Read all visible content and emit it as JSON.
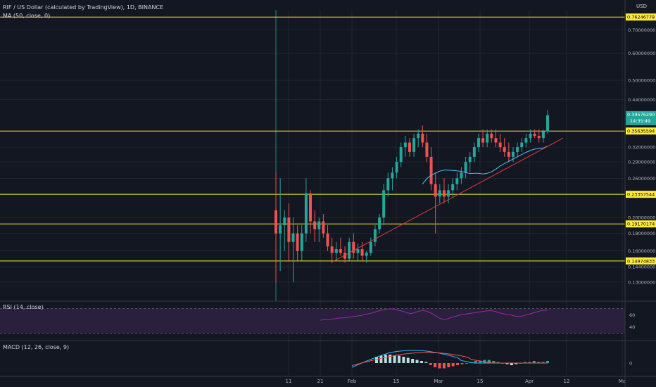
{
  "header": {
    "symbol_line": "RIF / US Dollar (calculated by TradingView), 1D, BINANCE",
    "ma_label": "MA (50, close, 0)",
    "currency": "USD"
  },
  "price_axis": {
    "ticks": [
      "0.70000000",
      "0.60000000",
      "0.50000000",
      "0.44000000",
      "0.32000000",
      "0.29000000",
      "0.26000000",
      "0.20000000",
      "0.18000000",
      "0.16000000",
      "0.14400000",
      "0.13000000"
    ],
    "last_price": "0.39576290",
    "countdown": "14:35:49"
  },
  "horizontal_levels": [
    {
      "price": 0.76246778,
      "label": "0.76246778"
    },
    {
      "price": 0.35635594,
      "label": "0.35635594"
    },
    {
      "price": 0.23357544,
      "label": "0.23357544"
    },
    {
      "price": 0.19170174,
      "label": "0.19170174"
    },
    {
      "price": 0.14974833,
      "label": "0.14974833"
    }
  ],
  "time_axis": {
    "labels": [
      "11",
      "21",
      "Feb",
      "15",
      "Mar",
      "15",
      "Apr",
      "12",
      "Ma"
    ]
  },
  "rsi": {
    "label": "RSI (14, close)",
    "ticks": [
      "60",
      "40"
    ],
    "upper": 70,
    "lower": 30
  },
  "macd": {
    "label": "MACD (12, 26, close, 9)",
    "ticks": [
      "0"
    ]
  },
  "colors": {
    "background": "#131722",
    "up": "#26a69a",
    "down": "#ef5350",
    "level": "#ffeb3b",
    "ma": "#4fc3f7",
    "trendline": "#e53935",
    "rsi": "#9c27b0",
    "rsi_band": "#2a1f3d",
    "macd": "#29b6f6",
    "signal": "#ff5252",
    "grid": "#2a2e39",
    "text": "#b2b5be"
  },
  "chart_data": {
    "type": "candlestick",
    "title": "RIF / US Dollar (calculated by TradingView), 1D, BINANCE",
    "y_scale": "log",
    "ylim": [
      0.12,
      0.8
    ],
    "candles": [
      [
        0.21,
        0.27,
        0.13,
        0.18
      ],
      [
        0.18,
        0.26,
        0.14,
        0.19
      ],
      [
        0.19,
        0.21,
        0.16,
        0.2
      ],
      [
        0.2,
        0.22,
        0.15,
        0.17
      ],
      [
        0.17,
        0.2,
        0.13,
        0.18
      ],
      [
        0.18,
        0.19,
        0.15,
        0.16
      ],
      [
        0.16,
        0.19,
        0.15,
        0.18
      ],
      [
        0.18,
        0.26,
        0.17,
        0.235
      ],
      [
        0.235,
        0.24,
        0.18,
        0.195
      ],
      [
        0.195,
        0.21,
        0.17,
        0.185
      ],
      [
        0.185,
        0.2,
        0.17,
        0.195
      ],
      [
        0.195,
        0.205,
        0.175,
        0.18
      ],
      [
        0.18,
        0.19,
        0.16,
        0.165
      ],
      [
        0.165,
        0.175,
        0.15,
        0.158
      ],
      [
        0.158,
        0.17,
        0.15,
        0.162
      ],
      [
        0.162,
        0.175,
        0.155,
        0.158
      ],
      [
        0.158,
        0.165,
        0.148,
        0.152
      ],
      [
        0.152,
        0.175,
        0.15,
        0.17
      ],
      [
        0.17,
        0.18,
        0.152,
        0.158
      ],
      [
        0.158,
        0.168,
        0.15,
        0.162
      ],
      [
        0.162,
        0.17,
        0.15,
        0.155
      ],
      [
        0.155,
        0.16,
        0.148,
        0.158
      ],
      [
        0.158,
        0.175,
        0.155,
        0.17
      ],
      [
        0.17,
        0.19,
        0.165,
        0.185
      ],
      [
        0.185,
        0.205,
        0.18,
        0.2
      ],
      [
        0.2,
        0.25,
        0.19,
        0.24
      ],
      [
        0.24,
        0.27,
        0.23,
        0.26
      ],
      [
        0.26,
        0.28,
        0.24,
        0.27
      ],
      [
        0.27,
        0.3,
        0.26,
        0.29
      ],
      [
        0.29,
        0.33,
        0.28,
        0.32
      ],
      [
        0.32,
        0.345,
        0.3,
        0.33
      ],
      [
        0.33,
        0.34,
        0.3,
        0.31
      ],
      [
        0.31,
        0.35,
        0.3,
        0.34
      ],
      [
        0.34,
        0.36,
        0.32,
        0.35
      ],
      [
        0.35,
        0.37,
        0.32,
        0.33
      ],
      [
        0.33,
        0.35,
        0.29,
        0.3
      ],
      [
        0.3,
        0.32,
        0.24,
        0.25
      ],
      [
        0.25,
        0.27,
        0.18,
        0.23
      ],
      [
        0.23,
        0.25,
        0.22,
        0.24
      ],
      [
        0.24,
        0.26,
        0.22,
        0.23
      ],
      [
        0.23,
        0.25,
        0.22,
        0.24
      ],
      [
        0.24,
        0.26,
        0.23,
        0.25
      ],
      [
        0.25,
        0.27,
        0.24,
        0.26
      ],
      [
        0.26,
        0.28,
        0.25,
        0.27
      ],
      [
        0.27,
        0.3,
        0.26,
        0.29
      ],
      [
        0.29,
        0.31,
        0.27,
        0.3
      ],
      [
        0.3,
        0.33,
        0.29,
        0.32
      ],
      [
        0.32,
        0.35,
        0.31,
        0.34
      ],
      [
        0.34,
        0.36,
        0.32,
        0.33
      ],
      [
        0.33,
        0.36,
        0.32,
        0.35
      ],
      [
        0.35,
        0.36,
        0.33,
        0.34
      ],
      [
        0.34,
        0.36,
        0.32,
        0.33
      ],
      [
        0.33,
        0.35,
        0.31,
        0.32
      ],
      [
        0.32,
        0.34,
        0.3,
        0.31
      ],
      [
        0.31,
        0.33,
        0.29,
        0.3
      ],
      [
        0.3,
        0.32,
        0.29,
        0.31
      ],
      [
        0.31,
        0.33,
        0.3,
        0.32
      ],
      [
        0.32,
        0.34,
        0.31,
        0.33
      ],
      [
        0.33,
        0.35,
        0.32,
        0.34
      ],
      [
        0.34,
        0.36,
        0.33,
        0.35
      ],
      [
        0.35,
        0.36,
        0.34,
        0.345
      ],
      [
        0.345,
        0.36,
        0.33,
        0.34
      ],
      [
        0.34,
        0.36,
        0.33,
        0.355
      ],
      [
        0.355,
        0.41,
        0.35,
        0.3958
      ]
    ],
    "trendline": {
      "points": [
        [
          0.148,
          0
        ],
        [
          0.34,
          1
        ]
      ]
    },
    "rsi_values": [
      51,
      52,
      52,
      53,
      54,
      55,
      55,
      56,
      57,
      58,
      59,
      61,
      62,
      64,
      66,
      68,
      69,
      70,
      69,
      67,
      66,
      63,
      62,
      64,
      66,
      67,
      65,
      62,
      58,
      54,
      52,
      54,
      56,
      58,
      60,
      61,
      62,
      63,
      64,
      65,
      66,
      67,
      66,
      64,
      62,
      61,
      60,
      58,
      57,
      58,
      60,
      62,
      64,
      66,
      67,
      68
    ],
    "macd_hist": [
      0.006,
      0.007,
      0.008,
      0.008,
      0.007,
      0.007,
      0.006,
      0.005,
      0.004,
      0.003,
      0.002,
      0.001,
      -0.002,
      -0.004,
      -0.005,
      -0.005,
      -0.004,
      -0.003,
      -0.002,
      -0.001,
      0.0,
      0.001,
      0.002,
      0.002,
      0.003,
      0.003,
      0.002,
      0.001,
      0.0,
      -0.001,
      -0.002,
      -0.001,
      0.0,
      0.001,
      0.001,
      0.002,
      0.001,
      0.001,
      0.002
    ]
  }
}
